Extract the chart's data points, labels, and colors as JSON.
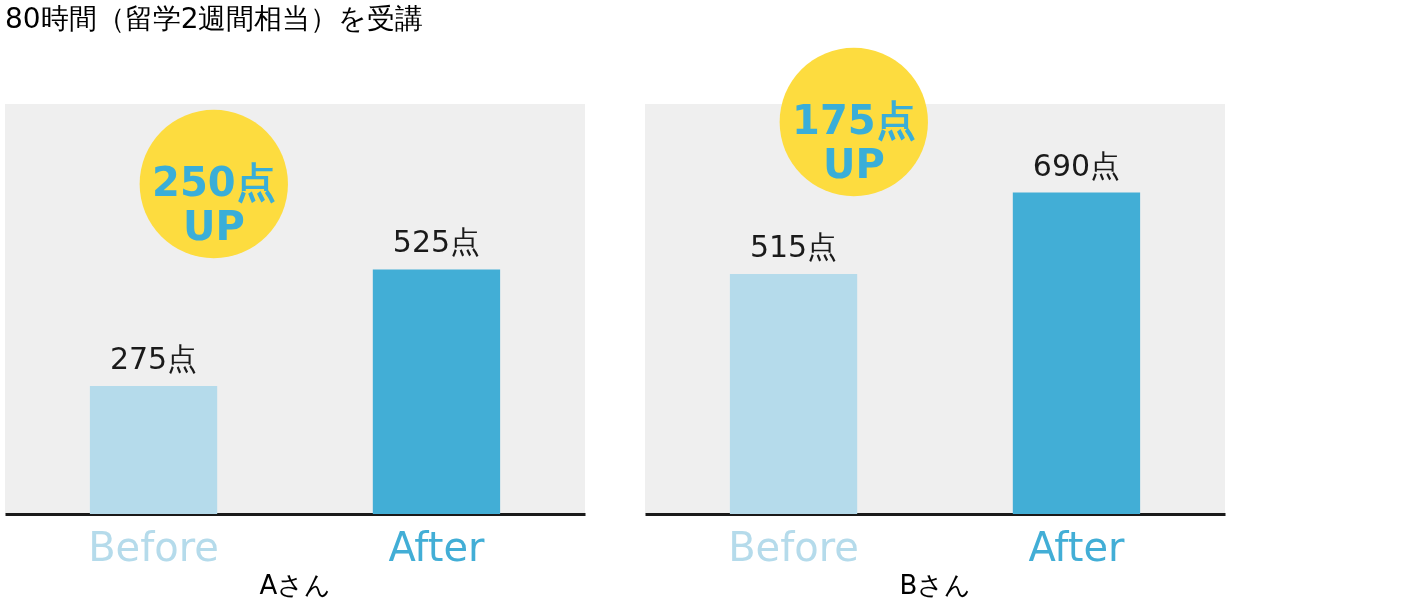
{
  "chart_data": [
    {
      "type": "bar",
      "title": "80時間（留学2週間相当）を受講",
      "xlabel": "Aさん",
      "categories": [
        "Before",
        "After"
      ],
      "values": [
        275,
        525
      ],
      "colors": [
        "#b5dbeb",
        "#42aed6"
      ],
      "value_labels": [
        "275点",
        "525点"
      ],
      "ylim": [
        0,
        880
      ],
      "tick_labels": "x",
      "grid": false,
      "annotations": [
        "250点 UP"
      ]
    },
    {
      "type": "bar",
      "xlabel": "Bさん",
      "categories": [
        "Before",
        "After"
      ],
      "values": [
        515,
        690
      ],
      "colors": [
        "#b5dbeb",
        "#42aed6"
      ],
      "value_labels": [
        "515点",
        "690点"
      ],
      "ylim": [
        0,
        880
      ],
      "tick_labels": "x",
      "grid": false,
      "annotations": [
        "175点 UP"
      ]
    }
  ]
}
